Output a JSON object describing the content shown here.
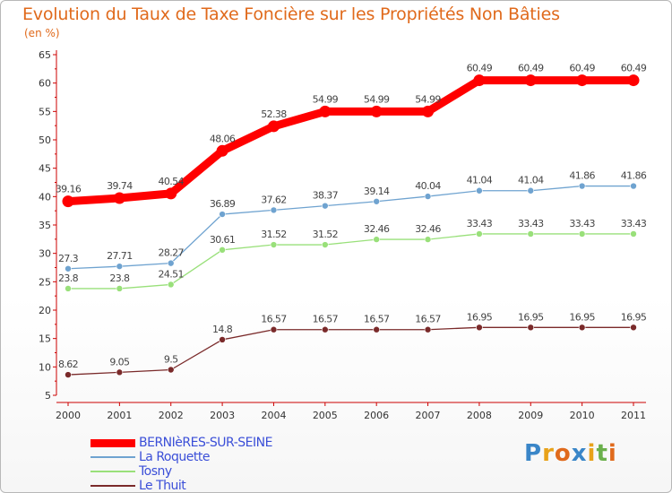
{
  "chart_data": {
    "type": "line",
    "title": "Evolution du Taux de Taxe Foncière sur les Propriétés Non Bâties",
    "ylabel": "(en %)",
    "xlabel": "",
    "x": [
      "2000",
      "2001",
      "2002",
      "2003",
      "2004",
      "2005",
      "2006",
      "2007",
      "2008",
      "2009",
      "2010",
      "2011"
    ],
    "ylim": [
      5,
      65
    ],
    "yticks": [
      "5",
      "10",
      "15",
      "20",
      "25",
      "30",
      "35",
      "40",
      "45",
      "50",
      "55",
      "60",
      "65"
    ],
    "grid": false,
    "legend_position": "bottom-left",
    "series": [
      {
        "name": "BERNIèRES-SUR-SEINE",
        "color": "#ff0000",
        "values": [
          39.16,
          39.74,
          40.54,
          48.06,
          52.38,
          54.99,
          54.99,
          54.99,
          60.49,
          60.49,
          60.49,
          60.49
        ],
        "labels": [
          "39.16",
          "39.74",
          "40.54",
          "48.06",
          "52.38",
          "54.99",
          "54.99",
          "54.99",
          "60.49",
          "60.49",
          "60.49",
          "60.49"
        ]
      },
      {
        "name": "La Roquette",
        "color": "#6fa3d0",
        "values": [
          27.3,
          27.71,
          28.27,
          36.89,
          37.62,
          38.37,
          39.14,
          40.04,
          41.04,
          41.04,
          41.86,
          41.86
        ],
        "labels": [
          "27.3",
          "27.71",
          "28.27",
          "36.89",
          "37.62",
          "38.37",
          "39.14",
          "40.04",
          "41.04",
          "41.04",
          "41.86",
          "41.86"
        ]
      },
      {
        "name": "Tosny",
        "color": "#99e07a",
        "values": [
          23.8,
          23.8,
          24.51,
          30.61,
          31.52,
          31.52,
          32.46,
          32.46,
          33.43,
          33.43,
          33.43,
          33.43
        ],
        "labels": [
          "23.8",
          "23.8",
          "24.51",
          "30.61",
          "31.52",
          "31.52",
          "32.46",
          "32.46",
          "33.43",
          "33.43",
          "33.43",
          "33.43"
        ]
      },
      {
        "name": "Le Thuit",
        "color": "#7a2a2a",
        "values": [
          8.62,
          9.05,
          9.5,
          14.8,
          16.57,
          16.57,
          16.57,
          16.57,
          16.95,
          16.95,
          16.95,
          16.95
        ],
        "labels": [
          "8.62",
          "9.05",
          "9.5",
          "14.8",
          "16.57",
          "16.57",
          "16.57",
          "16.57",
          "16.95",
          "16.95",
          "16.95",
          "16.95"
        ]
      }
    ]
  },
  "logo": {
    "letters": [
      "P",
      "r",
      "o",
      "x",
      "i",
      "t",
      "i"
    ],
    "colors": [
      "#3a86c8",
      "#e8a21a",
      "#e06a1c",
      "#3a86c8",
      "#e8a21a",
      "#6ab04c",
      "#e06a1c"
    ]
  }
}
